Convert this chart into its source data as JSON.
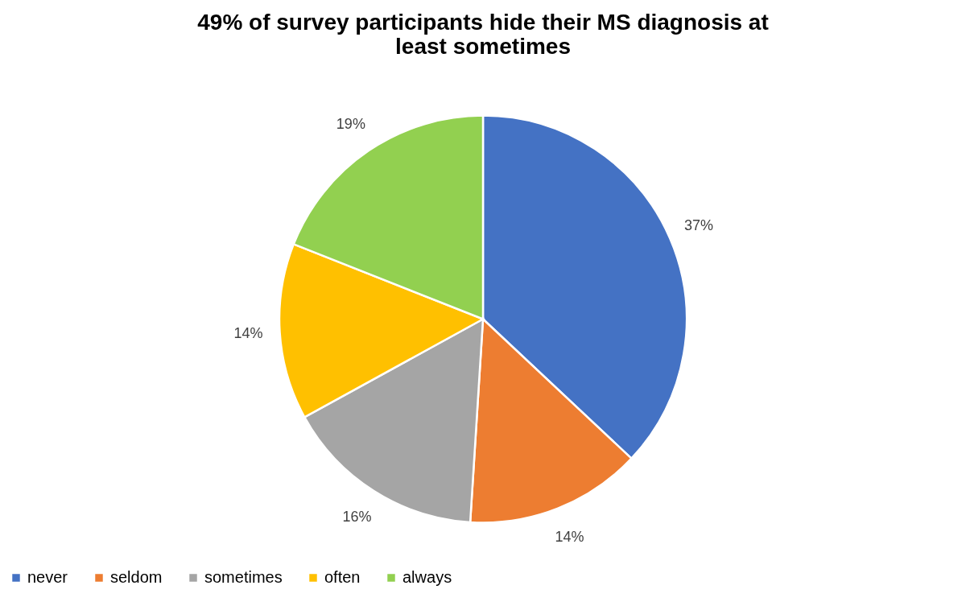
{
  "chart_data": {
    "type": "pie",
    "title": "49% of survey participants hide their MS diagnosis at least sometimes",
    "categories": [
      "never",
      "seldom",
      "sometimes",
      "often",
      "always"
    ],
    "values": [
      37,
      14,
      16,
      14,
      19
    ],
    "colors": [
      "#4472c4",
      "#ed7d31",
      "#a5a5a5",
      "#ffc000",
      "#92d050"
    ],
    "value_labels": [
      "37%",
      "14%",
      "16%",
      "14%",
      "19%"
    ],
    "legend": "bottom"
  }
}
